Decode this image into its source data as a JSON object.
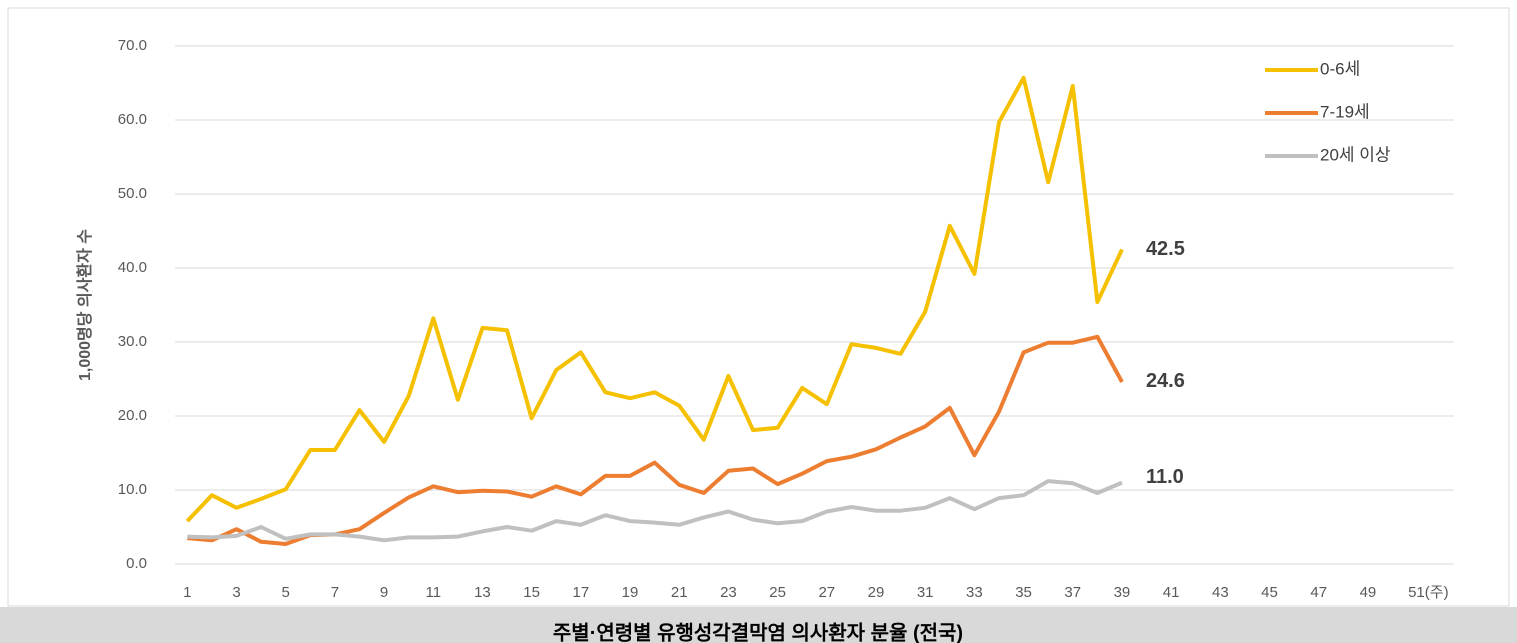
{
  "chart_data": {
    "type": "line",
    "title": "주별·연령별 유행성각결막염 의사환자 분율 (전국)",
    "y_label": "1,000명당 의사환자 수",
    "categories": [
      "1",
      null,
      "3",
      null,
      "5",
      null,
      "7",
      null,
      "9",
      null,
      "11",
      null,
      "13",
      null,
      "15",
      null,
      "17",
      null,
      "19",
      null,
      "21",
      null,
      "23",
      null,
      "25",
      null,
      "27",
      null,
      "29",
      null,
      "31",
      null,
      "33",
      null,
      "35",
      null,
      "37",
      null,
      "39",
      null,
      "41",
      null,
      "43",
      null,
      "45",
      null,
      "47",
      null,
      "49",
      null,
      "51(주)",
      null
    ],
    "series": [
      {
        "name": "0-6세",
        "color": "#f5c000",
        "values": [
          5.8,
          9.3,
          7.6,
          8.8,
          10.1,
          15.4,
          15.4,
          20.8,
          16.5,
          22.7,
          33.2,
          22.2,
          31.9,
          31.6,
          19.7,
          26.2,
          28.6,
          23.2,
          22.4,
          23.2,
          21.4,
          16.8,
          25.4,
          18.1,
          18.4,
          23.8,
          21.6,
          29.7,
          29.2,
          28.4,
          34.1,
          45.7,
          39.2,
          59.7,
          65.7,
          51.6,
          64.6,
          35.4,
          42.5,
          null,
          null,
          null,
          null,
          null,
          null,
          null,
          null,
          null,
          null,
          null,
          null,
          null
        ],
        "value_labels": [
          null,
          null,
          null,
          null,
          null,
          null,
          null,
          null,
          null,
          null,
          null,
          null,
          null,
          null,
          null,
          null,
          null,
          null,
          null,
          null,
          null,
          null,
          null,
          null,
          null,
          null,
          null,
          null,
          null,
          null,
          null,
          null,
          null,
          null,
          null,
          null,
          null,
          null,
          "42.5",
          null,
          null,
          null,
          null,
          null,
          null,
          null,
          null,
          null,
          null,
          null,
          null,
          null
        ]
      },
      {
        "name": "7-19세",
        "color": "#ed7d31",
        "values": [
          3.5,
          3.2,
          4.7,
          3.0,
          2.7,
          3.9,
          4.0,
          4.7,
          6.9,
          9.0,
          10.5,
          9.7,
          9.9,
          9.8,
          9.1,
          10.5,
          9.4,
          11.9,
          11.9,
          13.7,
          10.7,
          9.6,
          12.6,
          12.9,
          10.8,
          12.2,
          13.9,
          14.5,
          15.5,
          17.1,
          18.6,
          21.1,
          14.7,
          20.6,
          28.6,
          29.9,
          29.9,
          30.7,
          24.6,
          null,
          null,
          null,
          null,
          null,
          null,
          null,
          null,
          null,
          null,
          null,
          null,
          null
        ],
        "value_labels": [
          null,
          null,
          null,
          null,
          null,
          null,
          null,
          null,
          null,
          null,
          null,
          null,
          null,
          null,
          null,
          null,
          null,
          null,
          null,
          null,
          null,
          null,
          null,
          null,
          null,
          null,
          null,
          null,
          null,
          null,
          null,
          null,
          null,
          null,
          null,
          null,
          null,
          null,
          "24.6",
          null,
          null,
          null,
          null,
          null,
          null,
          null,
          null,
          null,
          null,
          null,
          null,
          null
        ]
      },
      {
        "name": "20세 이상",
        "color": "#c0c0c0",
        "values": [
          3.7,
          3.6,
          3.8,
          5.0,
          3.4,
          4.0,
          4.0,
          3.7,
          3.2,
          3.6,
          3.6,
          3.7,
          4.4,
          5.0,
          4.5,
          5.8,
          5.3,
          6.6,
          5.8,
          5.6,
          5.3,
          6.3,
          7.1,
          6.0,
          5.5,
          5.8,
          7.1,
          7.7,
          7.2,
          7.2,
          7.6,
          8.9,
          7.4,
          8.9,
          9.3,
          11.2,
          10.9,
          9.6,
          11.0,
          null,
          null,
          null,
          null,
          null,
          null,
          null,
          null,
          null,
          null,
          null,
          null,
          null
        ],
        "value_labels": [
          null,
          null,
          null,
          null,
          null,
          null,
          null,
          null,
          null,
          null,
          null,
          null,
          null,
          null,
          null,
          null,
          null,
          null,
          null,
          null,
          null,
          null,
          null,
          null,
          null,
          null,
          null,
          null,
          null,
          null,
          null,
          null,
          null,
          null,
          null,
          null,
          null,
          null,
          "11.0",
          null,
          null,
          null,
          null,
          null,
          null,
          null,
          null,
          null,
          null,
          null,
          null,
          null
        ]
      }
    ],
    "ylim": [
      0,
      70
    ],
    "yticks": [
      {
        "value": 0,
        "label": "0.0"
      },
      {
        "value": 10,
        "label": "10.0"
      },
      {
        "value": 20,
        "label": "20.0"
      },
      {
        "value": 30,
        "label": "30.0"
      },
      {
        "value": 40,
        "label": "40.0"
      },
      {
        "value": 50,
        "label": "50.0"
      },
      {
        "value": 60,
        "label": "60.0"
      },
      {
        "value": 70,
        "label": "70.0"
      }
    ],
    "grid": true,
    "legend": "top-right"
  }
}
